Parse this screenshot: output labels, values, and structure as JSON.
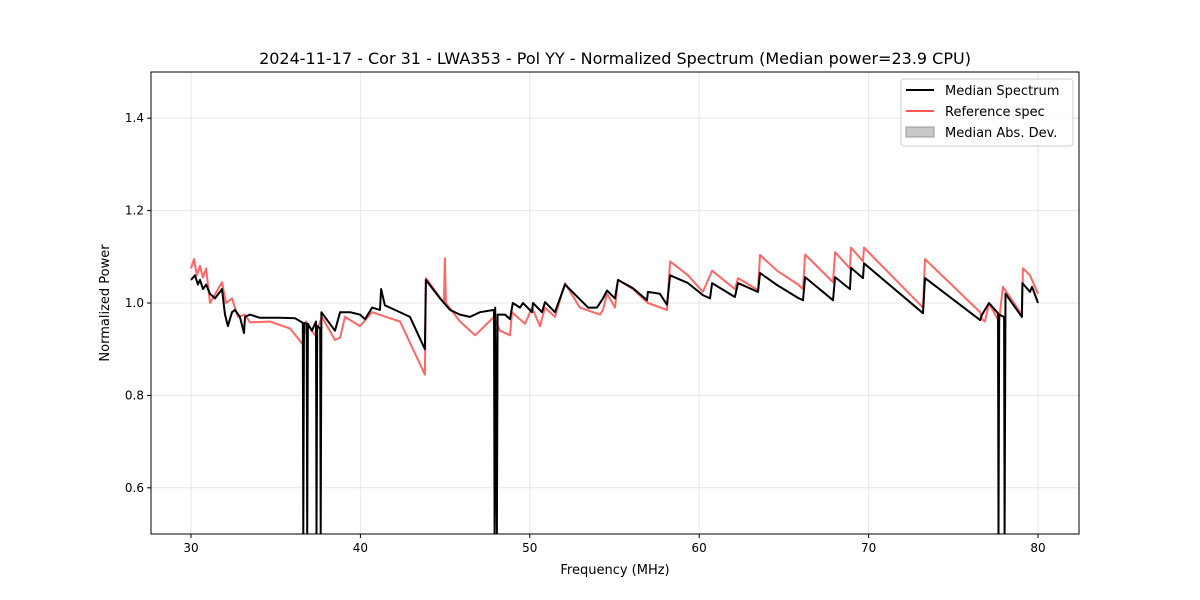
{
  "chart_data": {
    "type": "line",
    "title": "2024-11-17 - Cor 31 - LWA353 - Pol YY - Normalized Spectrum (Median power=23.9 CPU)",
    "xlabel": "Frequency (MHz)",
    "ylabel": "Normalized Power",
    "xlim": [
      27.64,
      82.42
    ],
    "ylim": [
      0.5,
      1.5
    ],
    "xticks": [
      30,
      40,
      50,
      60,
      70,
      80
    ],
    "yticks": [
      0.6,
      0.8,
      1.0,
      1.2,
      1.4
    ],
    "ytick_labels": [
      "0.6",
      "0.8",
      "1.0",
      "1.2",
      "1.4"
    ],
    "grid": true,
    "legend_position": "top-right",
    "legend": [
      {
        "label": "Median Spectrum",
        "kind": "line",
        "color": "#000000"
      },
      {
        "label": "Reference spec",
        "kind": "line",
        "color": "#ff5555"
      },
      {
        "label": "Median Abs. Dev.",
        "kind": "patch",
        "color": "#c8c8c8"
      }
    ],
    "series": [
      {
        "name": "Reference spec",
        "color": "#ff5555",
        "points": [
          [
            30.0,
            1.075
          ],
          [
            30.18,
            1.095
          ],
          [
            30.35,
            1.06
          ],
          [
            30.53,
            1.08
          ],
          [
            30.71,
            1.055
          ],
          [
            30.89,
            1.075
          ],
          [
            31.12,
            1.0
          ],
          [
            31.83,
            1.045
          ],
          [
            32.07,
            1.0
          ],
          [
            32.42,
            1.01
          ],
          [
            32.77,
            0.97
          ],
          [
            33.19,
            0.975
          ],
          [
            33.48,
            0.958
          ],
          [
            34.66,
            0.96
          ],
          [
            35.84,
            0.945
          ],
          [
            36.61,
            0.91
          ],
          [
            36.79,
            0.96
          ],
          [
            37.32,
            0.93
          ],
          [
            37.73,
            0.97
          ],
          [
            38.5,
            0.92
          ],
          [
            38.8,
            0.925
          ],
          [
            39.09,
            0.97
          ],
          [
            39.98,
            0.95
          ],
          [
            40.69,
            0.98
          ],
          [
            41.51,
            0.97
          ],
          [
            42.34,
            0.96
          ],
          [
            43.81,
            0.845
          ],
          [
            43.87,
            1.054
          ],
          [
            44.93,
            1.0
          ],
          [
            44.99,
            1.097
          ],
          [
            45.05,
            1.0
          ],
          [
            45.88,
            0.96
          ],
          [
            46.77,
            0.93
          ],
          [
            47.89,
            0.97
          ],
          [
            48.24,
            0.94
          ],
          [
            48.83,
            0.93
          ],
          [
            48.95,
            0.98
          ],
          [
            49.72,
            0.955
          ],
          [
            50.13,
            0.99
          ],
          [
            50.6,
            0.95
          ],
          [
            50.9,
            0.99
          ],
          [
            51.49,
            0.97
          ],
          [
            52.08,
            1.043
          ],
          [
            52.96,
            0.99
          ],
          [
            54.14,
            0.975
          ],
          [
            54.32,
            0.985
          ],
          [
            54.56,
            1.02
          ],
          [
            55.03,
            0.99
          ],
          [
            55.21,
            1.05
          ],
          [
            56.09,
            1.03
          ],
          [
            56.97,
            1.0
          ],
          [
            58.1,
            0.985
          ],
          [
            58.28,
            1.09
          ],
          [
            59.34,
            1.06
          ],
          [
            60.22,
            1.024
          ],
          [
            60.76,
            1.07
          ],
          [
            62.11,
            1.03
          ],
          [
            62.29,
            1.054
          ],
          [
            63.47,
            1.028
          ],
          [
            63.59,
            1.104
          ],
          [
            64.59,
            1.07
          ],
          [
            65.83,
            1.04
          ],
          [
            66.13,
            1.03
          ],
          [
            66.25,
            1.105
          ],
          [
            67.9,
            1.045
          ],
          [
            68.02,
            1.11
          ],
          [
            68.9,
            1.075
          ],
          [
            68.96,
            1.12
          ],
          [
            69.67,
            1.09
          ],
          [
            69.73,
            1.12
          ],
          [
            73.21,
            0.99
          ],
          [
            73.33,
            1.095
          ],
          [
            76.58,
            0.98
          ],
          [
            76.69,
            0.965
          ],
          [
            76.87,
            0.96
          ],
          [
            77.11,
            1.0
          ],
          [
            77.7,
            0.96
          ],
          [
            77.93,
            1.035
          ],
          [
            79.05,
            0.975
          ],
          [
            79.11,
            1.075
          ],
          [
            79.53,
            1.06
          ],
          [
            80.0,
            1.02
          ]
        ]
      },
      {
        "name": "Median Spectrum",
        "color": "#000000",
        "points": [
          [
            30.0,
            1.05
          ],
          [
            30.24,
            1.06
          ],
          [
            30.41,
            1.04
          ],
          [
            30.53,
            1.05
          ],
          [
            30.71,
            1.03
          ],
          [
            30.89,
            1.04
          ],
          [
            31.12,
            1.02
          ],
          [
            31.42,
            1.01
          ],
          [
            31.83,
            1.03
          ],
          [
            32.01,
            0.975
          ],
          [
            32.18,
            0.95
          ],
          [
            32.42,
            0.98
          ],
          [
            32.6,
            0.985
          ],
          [
            32.89,
            0.97
          ],
          [
            33.13,
            0.935
          ],
          [
            33.19,
            0.97
          ],
          [
            33.48,
            0.975
          ],
          [
            34.07,
            0.968
          ],
          [
            35.25,
            0.968
          ],
          [
            36.14,
            0.967
          ],
          [
            36.6,
            0.957
          ],
          [
            36.63,
            0.5
          ],
          [
            36.67,
            0.957
          ],
          [
            36.83,
            0.955
          ],
          [
            36.86,
            0.5
          ],
          [
            36.9,
            0.955
          ],
          [
            37.14,
            0.94
          ],
          [
            37.38,
            0.96
          ],
          [
            37.41,
            0.5
          ],
          [
            37.45,
            0.95
          ],
          [
            37.63,
            0.945
          ],
          [
            37.66,
            0.5
          ],
          [
            37.7,
            0.98
          ],
          [
            38.5,
            0.94
          ],
          [
            38.8,
            0.98
          ],
          [
            39.39,
            0.98
          ],
          [
            39.98,
            0.975
          ],
          [
            40.27,
            0.965
          ],
          [
            40.69,
            0.99
          ],
          [
            41.16,
            0.985
          ],
          [
            41.22,
            1.03
          ],
          [
            41.45,
            0.995
          ],
          [
            42.04,
            0.985
          ],
          [
            42.93,
            0.97
          ],
          [
            43.81,
            0.9
          ],
          [
            43.87,
            1.05
          ],
          [
            44.7,
            1.01
          ],
          [
            45.29,
            0.985
          ],
          [
            45.88,
            0.975
          ],
          [
            46.47,
            0.97
          ],
          [
            47.06,
            0.98
          ],
          [
            47.89,
            0.985
          ],
          [
            47.92,
            0.5
          ],
          [
            47.96,
            0.99
          ],
          [
            48.06,
            0.5
          ],
          [
            48.1,
            0.975
          ],
          [
            48.54,
            0.975
          ],
          [
            48.83,
            0.965
          ],
          [
            49.0,
            1.0
          ],
          [
            49.42,
            0.99
          ],
          [
            49.6,
            1.0
          ],
          [
            50.13,
            0.98
          ],
          [
            50.19,
            1.0
          ],
          [
            50.72,
            0.98
          ],
          [
            50.9,
            1.002
          ],
          [
            51.49,
            0.98
          ],
          [
            52.08,
            1.04
          ],
          [
            53.44,
            0.99
          ],
          [
            53.97,
            0.99
          ],
          [
            54.32,
            1.01
          ],
          [
            54.56,
            1.027
          ],
          [
            55.03,
            1.01
          ],
          [
            55.21,
            1.05
          ],
          [
            56.09,
            1.032
          ],
          [
            56.92,
            1.006
          ],
          [
            56.97,
            1.024
          ],
          [
            57.68,
            1.02
          ],
          [
            58.1,
            0.996
          ],
          [
            58.28,
            1.06
          ],
          [
            59.34,
            1.043
          ],
          [
            60.22,
            1.017
          ],
          [
            60.64,
            1.01
          ],
          [
            60.76,
            1.043
          ],
          [
            62.11,
            1.013
          ],
          [
            62.29,
            1.043
          ],
          [
            63.47,
            1.024
          ],
          [
            63.59,
            1.065
          ],
          [
            64.59,
            1.039
          ],
          [
            65.83,
            1.011
          ],
          [
            66.13,
            1.006
          ],
          [
            66.25,
            1.056
          ],
          [
            67.9,
            1.006
          ],
          [
            68.02,
            1.056
          ],
          [
            68.9,
            1.03
          ],
          [
            68.96,
            1.076
          ],
          [
            69.67,
            1.054
          ],
          [
            69.73,
            1.086
          ],
          [
            73.21,
            0.978
          ],
          [
            73.33,
            1.054
          ],
          [
            76.58,
            0.963
          ],
          [
            76.69,
            0.974
          ],
          [
            77.11,
            1.0
          ],
          [
            77.64,
            0.978
          ],
          [
            77.67,
            0.5
          ],
          [
            77.71,
            0.975
          ],
          [
            78.0,
            0.97
          ],
          [
            78.03,
            0.5
          ],
          [
            78.08,
            1.02
          ],
          [
            79.05,
            0.97
          ],
          [
            79.08,
            1.043
          ],
          [
            79.53,
            1.024
          ],
          [
            79.65,
            1.035
          ],
          [
            80.0,
            1.0
          ]
        ]
      }
    ]
  }
}
